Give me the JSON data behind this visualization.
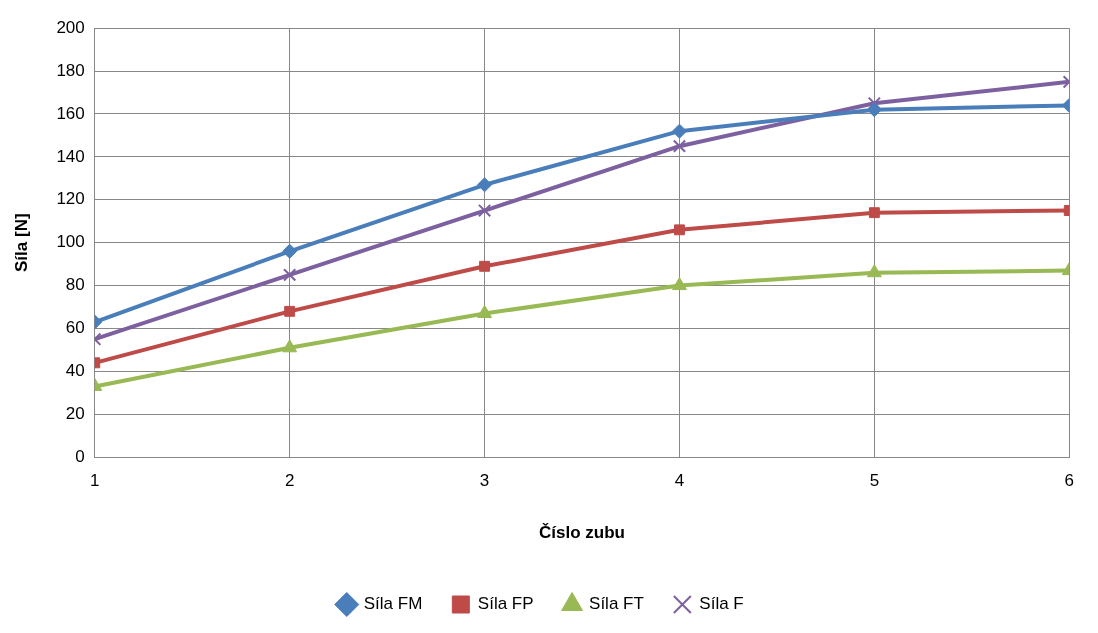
{
  "chart_data": {
    "type": "line",
    "xlabel": "Číslo zubu",
    "ylabel": "Síla [N]",
    "x": [
      1,
      2,
      3,
      4,
      5,
      6
    ],
    "xlim": [
      1,
      6
    ],
    "xticks": [
      1,
      2,
      3,
      4,
      5,
      6
    ],
    "ylim": [
      0,
      200
    ],
    "yticks": [
      0,
      20,
      40,
      60,
      80,
      100,
      120,
      140,
      160,
      180,
      200
    ],
    "grid": true,
    "legend": "bottom",
    "series": [
      {
        "name": "Síla FM",
        "color": "#4a7ebb",
        "marker": "diamond",
        "values": [
          63,
          96,
          127,
          152,
          162,
          164
        ]
      },
      {
        "name": "Síla FP",
        "color": "#be4b48",
        "marker": "square",
        "values": [
          44,
          68,
          89,
          106,
          114,
          115
        ]
      },
      {
        "name": "Síla FT",
        "color": "#98b954",
        "marker": "triangle",
        "values": [
          33,
          51,
          67,
          80,
          86,
          87
        ]
      },
      {
        "name": "Síla F",
        "color": "#7d60a0",
        "marker": "cross",
        "values": [
          55,
          85,
          115,
          145,
          165,
          175
        ]
      }
    ]
  }
}
